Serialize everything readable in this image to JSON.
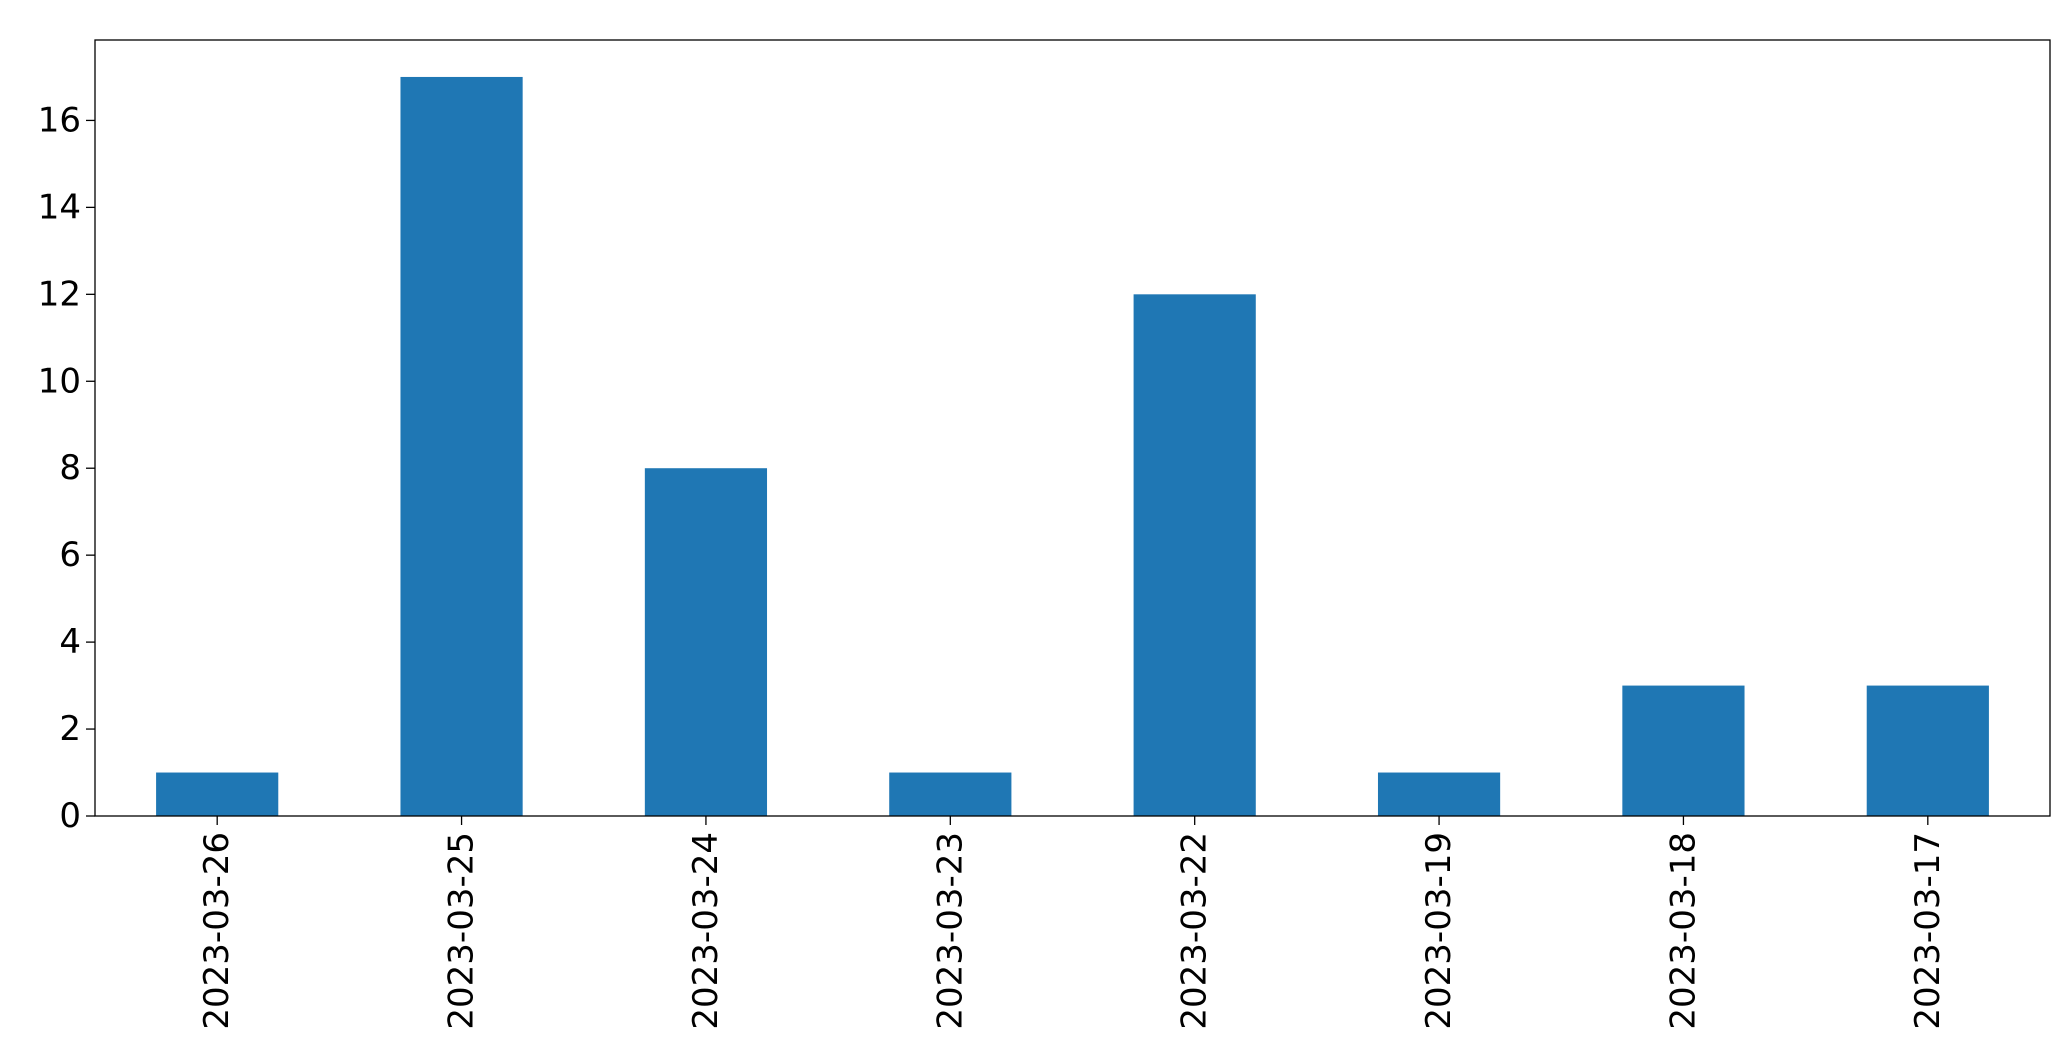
{
  "chart_data": {
    "type": "bar",
    "title": "",
    "xlabel": "",
    "ylabel": "",
    "categories": [
      "2023-03-26",
      "2023-03-25",
      "2023-03-24",
      "2023-03-23",
      "2023-03-22",
      "2023-03-19",
      "2023-03-18",
      "2023-03-17"
    ],
    "values": [
      1,
      17,
      8,
      1,
      12,
      1,
      3,
      3
    ],
    "ylim": [
      0,
      17.85
    ],
    "yticks": [
      0,
      2,
      4,
      6,
      8,
      10,
      12,
      14,
      16
    ],
    "bar_color": "#1f77b4",
    "grid": false,
    "legend": false
  }
}
